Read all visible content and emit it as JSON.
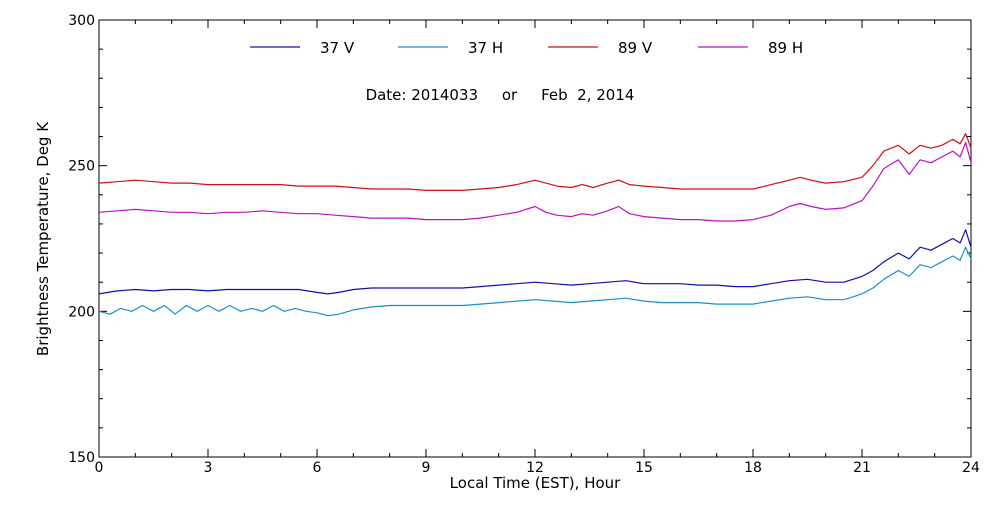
{
  "chart_data": {
    "type": "line",
    "title": "",
    "date_line": "Date: 2014033     or     Feb  2, 2014",
    "xlabel": "Local Time (EST), Hour",
    "ylabel": "Brightness Temperature, Deg K",
    "xlim": [
      0,
      24
    ],
    "ylim": [
      150,
      300
    ],
    "xticks": [
      0,
      3,
      6,
      9,
      12,
      15,
      18,
      21,
      24
    ],
    "xtick_labels": [
      "0",
      "3",
      "6",
      "9",
      "12",
      "15",
      "18",
      "21",
      "24"
    ],
    "yticks": [
      150,
      200,
      250,
      300
    ],
    "ytick_labels": [
      "150",
      "200",
      "250",
      "300"
    ],
    "grid": false,
    "legend": "top, horizontal",
    "series": [
      {
        "name": "37 V",
        "color": "#1010b0",
        "points": [
          [
            0,
            206
          ],
          [
            0.5,
            207
          ],
          [
            1,
            207.5
          ],
          [
            1.5,
            207
          ],
          [
            2,
            207.5
          ],
          [
            2.5,
            207.5
          ],
          [
            3,
            207
          ],
          [
            3.5,
            207.5
          ],
          [
            4,
            207.5
          ],
          [
            4.5,
            207.5
          ],
          [
            5,
            207.5
          ],
          [
            5.5,
            207.5
          ],
          [
            6,
            206.5
          ],
          [
            6.3,
            206
          ],
          [
            6.6,
            206.5
          ],
          [
            7,
            207.5
          ],
          [
            7.5,
            208
          ],
          [
            8,
            208
          ],
          [
            8.5,
            208
          ],
          [
            9,
            208
          ],
          [
            9.5,
            208
          ],
          [
            10,
            208
          ],
          [
            10.5,
            208.5
          ],
          [
            11,
            209
          ],
          [
            11.5,
            209.5
          ],
          [
            12,
            210
          ],
          [
            12.5,
            209.5
          ],
          [
            13,
            209
          ],
          [
            13.5,
            209.5
          ],
          [
            14,
            210
          ],
          [
            14.5,
            210.5
          ],
          [
            15,
            209.5
          ],
          [
            15.5,
            209.5
          ],
          [
            16,
            209.5
          ],
          [
            16.5,
            209
          ],
          [
            17,
            209
          ],
          [
            17.5,
            208.5
          ],
          [
            18,
            208.5
          ],
          [
            18.5,
            209.5
          ],
          [
            19,
            210.5
          ],
          [
            19.5,
            211
          ],
          [
            20,
            210
          ],
          [
            20.5,
            210
          ],
          [
            21,
            212
          ],
          [
            21.3,
            214
          ],
          [
            21.6,
            217
          ],
          [
            22,
            220
          ],
          [
            22.3,
            218
          ],
          [
            22.6,
            222
          ],
          [
            22.9,
            221
          ],
          [
            23.2,
            223
          ],
          [
            23.5,
            225
          ],
          [
            23.7,
            223.5
          ],
          [
            23.85,
            228
          ],
          [
            24,
            222
          ]
        ]
      },
      {
        "name": "37 H",
        "color": "#1890d0",
        "points": [
          [
            0,
            200
          ],
          [
            0.3,
            199
          ],
          [
            0.6,
            201
          ],
          [
            0.9,
            200
          ],
          [
            1.2,
            202
          ],
          [
            1.5,
            200
          ],
          [
            1.8,
            202
          ],
          [
            2.1,
            199
          ],
          [
            2.4,
            202
          ],
          [
            2.7,
            200
          ],
          [
            3,
            202
          ],
          [
            3.3,
            200
          ],
          [
            3.6,
            202
          ],
          [
            3.9,
            200
          ],
          [
            4.2,
            201
          ],
          [
            4.5,
            200
          ],
          [
            4.8,
            202
          ],
          [
            5.1,
            200
          ],
          [
            5.4,
            201
          ],
          [
            5.7,
            200
          ],
          [
            6,
            199.5
          ],
          [
            6.3,
            198.5
          ],
          [
            6.6,
            199
          ],
          [
            7,
            200.5
          ],
          [
            7.5,
            201.5
          ],
          [
            8,
            202
          ],
          [
            8.5,
            202
          ],
          [
            9,
            202
          ],
          [
            9.5,
            202
          ],
          [
            10,
            202
          ],
          [
            10.5,
            202.5
          ],
          [
            11,
            203
          ],
          [
            11.5,
            203.5
          ],
          [
            12,
            204
          ],
          [
            12.5,
            203.5
          ],
          [
            13,
            203
          ],
          [
            13.5,
            203.5
          ],
          [
            14,
            204
          ],
          [
            14.5,
            204.5
          ],
          [
            15,
            203.5
          ],
          [
            15.5,
            203
          ],
          [
            16,
            203
          ],
          [
            16.5,
            203
          ],
          [
            17,
            202.5
          ],
          [
            17.5,
            202.5
          ],
          [
            18,
            202.5
          ],
          [
            18.5,
            203.5
          ],
          [
            19,
            204.5
          ],
          [
            19.5,
            205
          ],
          [
            20,
            204
          ],
          [
            20.5,
            204
          ],
          [
            21,
            206
          ],
          [
            21.3,
            208
          ],
          [
            21.6,
            211
          ],
          [
            22,
            214
          ],
          [
            22.3,
            212
          ],
          [
            22.6,
            216
          ],
          [
            22.9,
            215
          ],
          [
            23.2,
            217
          ],
          [
            23.5,
            219
          ],
          [
            23.7,
            217.5
          ],
          [
            23.85,
            222
          ],
          [
            24,
            218
          ]
        ]
      },
      {
        "name": "89 V",
        "color": "#d01010",
        "points": [
          [
            0,
            244
          ],
          [
            0.5,
            244.5
          ],
          [
            1,
            245
          ],
          [
            1.5,
            244.5
          ],
          [
            2,
            244
          ],
          [
            2.5,
            244
          ],
          [
            3,
            243.5
          ],
          [
            3.5,
            243.5
          ],
          [
            4,
            243.5
          ],
          [
            4.5,
            243.5
          ],
          [
            5,
            243.5
          ],
          [
            5.5,
            243
          ],
          [
            6,
            243
          ],
          [
            6.5,
            243
          ],
          [
            7,
            242.5
          ],
          [
            7.5,
            242
          ],
          [
            8,
            242
          ],
          [
            8.5,
            242
          ],
          [
            9,
            241.5
          ],
          [
            9.5,
            241.5
          ],
          [
            10,
            241.5
          ],
          [
            10.5,
            242
          ],
          [
            11,
            242.5
          ],
          [
            11.5,
            243.5
          ],
          [
            12,
            245
          ],
          [
            12.3,
            244
          ],
          [
            12.6,
            243
          ],
          [
            13,
            242.5
          ],
          [
            13.3,
            243.5
          ],
          [
            13.6,
            242.5
          ],
          [
            14,
            244
          ],
          [
            14.3,
            245
          ],
          [
            14.6,
            243.5
          ],
          [
            15,
            243
          ],
          [
            15.5,
            242.5
          ],
          [
            16,
            242
          ],
          [
            16.5,
            242
          ],
          [
            17,
            242
          ],
          [
            17.5,
            242
          ],
          [
            18,
            242
          ],
          [
            18.5,
            243.5
          ],
          [
            19,
            245
          ],
          [
            19.3,
            246
          ],
          [
            19.6,
            245
          ],
          [
            20,
            244
          ],
          [
            20.5,
            244.5
          ],
          [
            21,
            246
          ],
          [
            21.3,
            250
          ],
          [
            21.6,
            255
          ],
          [
            22,
            257
          ],
          [
            22.3,
            254
          ],
          [
            22.6,
            257
          ],
          [
            22.9,
            256
          ],
          [
            23.2,
            257
          ],
          [
            23.5,
            259
          ],
          [
            23.7,
            257.5
          ],
          [
            23.85,
            261
          ],
          [
            24,
            256
          ]
        ]
      },
      {
        "name": "89 H",
        "color": "#c010c0",
        "points": [
          [
            0,
            234
          ],
          [
            0.5,
            234.5
          ],
          [
            1,
            235
          ],
          [
            1.5,
            234.5
          ],
          [
            2,
            234
          ],
          [
            2.5,
            234
          ],
          [
            3,
            233.5
          ],
          [
            3.5,
            234
          ],
          [
            4,
            234
          ],
          [
            4.5,
            234.5
          ],
          [
            5,
            234
          ],
          [
            5.5,
            233.5
          ],
          [
            6,
            233.5
          ],
          [
            6.5,
            233
          ],
          [
            7,
            232.5
          ],
          [
            7.5,
            232
          ],
          [
            8,
            232
          ],
          [
            8.5,
            232
          ],
          [
            9,
            231.5
          ],
          [
            9.5,
            231.5
          ],
          [
            10,
            231.5
          ],
          [
            10.5,
            232
          ],
          [
            11,
            233
          ],
          [
            11.5,
            234
          ],
          [
            12,
            236
          ],
          [
            12.3,
            234
          ],
          [
            12.6,
            233
          ],
          [
            13,
            232.5
          ],
          [
            13.3,
            233.5
          ],
          [
            13.6,
            233
          ],
          [
            14,
            234.5
          ],
          [
            14.3,
            236
          ],
          [
            14.6,
            233.5
          ],
          [
            15,
            232.5
          ],
          [
            15.5,
            232
          ],
          [
            16,
            231.5
          ],
          [
            16.5,
            231.5
          ],
          [
            17,
            231
          ],
          [
            17.5,
            231
          ],
          [
            18,
            231.5
          ],
          [
            18.5,
            233
          ],
          [
            19,
            236
          ],
          [
            19.3,
            237
          ],
          [
            19.6,
            236
          ],
          [
            20,
            235
          ],
          [
            20.5,
            235.5
          ],
          [
            21,
            238
          ],
          [
            21.3,
            243
          ],
          [
            21.6,
            249
          ],
          [
            22,
            252
          ],
          [
            22.3,
            247
          ],
          [
            22.6,
            252
          ],
          [
            22.9,
            251
          ],
          [
            23.2,
            253
          ],
          [
            23.5,
            255
          ],
          [
            23.7,
            253
          ],
          [
            23.85,
            258
          ],
          [
            24,
            251
          ]
        ]
      }
    ]
  }
}
